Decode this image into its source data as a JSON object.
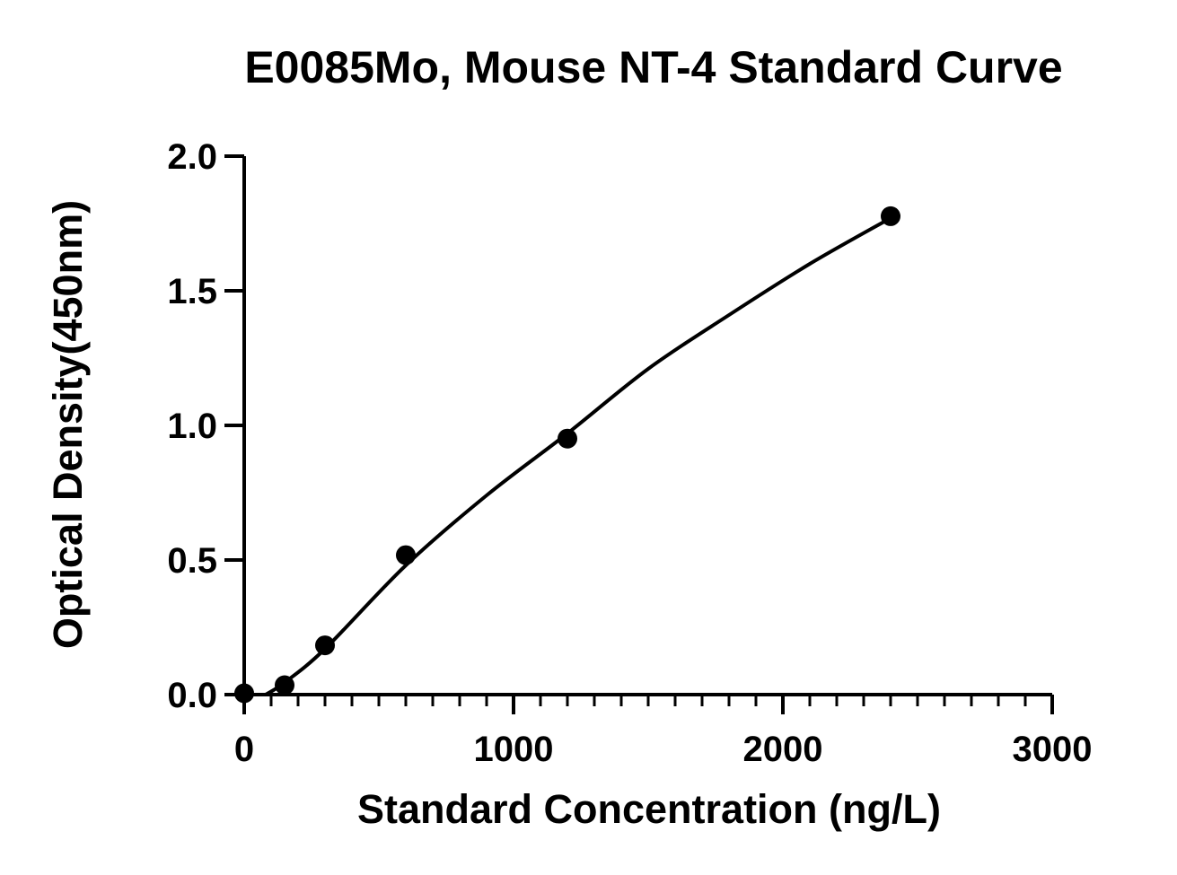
{
  "chart_data": {
    "type": "scatter",
    "title": "E0085Mo, Mouse NT-4 Standard Curve",
    "xlabel": "Standard Concentration (ng/L)",
    "ylabel": "Optical Density(450nm)",
    "xlim": [
      0,
      3000
    ],
    "ylim": [
      0,
      2.0
    ],
    "x_ticks": [
      0,
      1000,
      2000,
      3000
    ],
    "x_tick_labels": [
      "0",
      "1000",
      "2000",
      "3000"
    ],
    "y_ticks": [
      0,
      0.5,
      1.0,
      1.5,
      2.0
    ],
    "y_tick_labels": [
      "0.0",
      "0.5",
      "1.0",
      "1.5",
      "2.0"
    ],
    "x_minor_step": 100,
    "y_minor_step": 0.1,
    "grid": false,
    "legend": "none",
    "series": [
      {
        "x": [
          0,
          150,
          300,
          600,
          1200,
          2400
        ],
        "y": [
          0.005,
          0.035,
          0.183,
          0.518,
          0.951,
          1.777
        ]
      }
    ],
    "fit_curve": {
      "x": [
        80,
        150,
        300,
        600,
        900,
        1200,
        1500,
        1800,
        2100,
        2400
      ],
      "y": [
        0.0,
        0.045,
        0.17,
        0.48,
        0.74,
        0.97,
        1.21,
        1.41,
        1.6,
        1.77
      ]
    },
    "colors": {
      "marker": "#000000",
      "line": "#000000",
      "axis": "#000000"
    }
  }
}
